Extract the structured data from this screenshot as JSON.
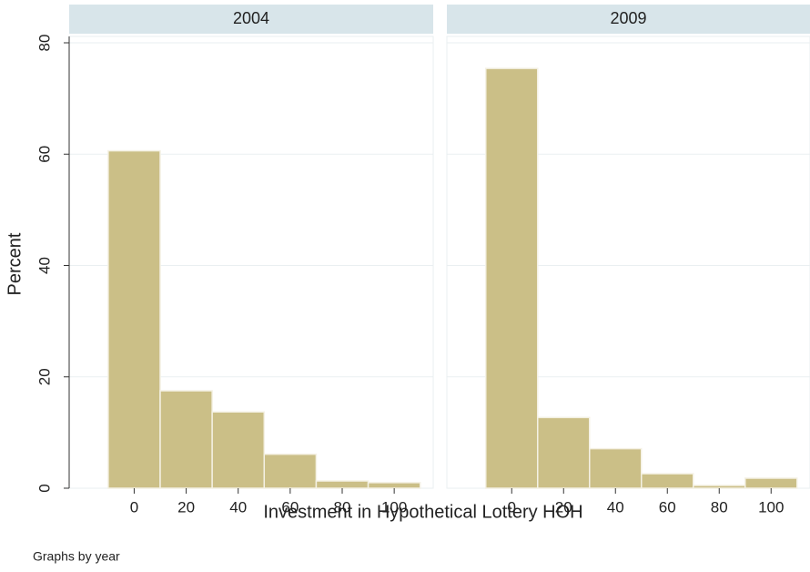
{
  "chart_data": {
    "type": "histogram",
    "ylabel": "Percent",
    "xlabel": "Investment in Hypothetical Lottery HOH",
    "note": "Graphs by year",
    "ylim": [
      0,
      80
    ],
    "yticks": [
      0,
      20,
      40,
      60,
      80
    ],
    "xlim": [
      -25,
      115
    ],
    "xticks": [
      0,
      20,
      40,
      60,
      80,
      100
    ],
    "grid": true,
    "color": "#cbbf87",
    "strip_color": "#d8e5ea",
    "panels": [
      {
        "title": "2004",
        "bins": [
          -10,
          10,
          30,
          50,
          70,
          90,
          110
        ],
        "values": [
          60.6,
          17.5,
          13.7,
          6.1,
          1.3,
          1.0
        ]
      },
      {
        "title": "2009",
        "bins": [
          -10,
          10,
          30,
          50,
          70,
          90,
          110
        ],
        "values": [
          75.4,
          12.7,
          7.1,
          2.6,
          0.5,
          1.8
        ]
      }
    ]
  }
}
